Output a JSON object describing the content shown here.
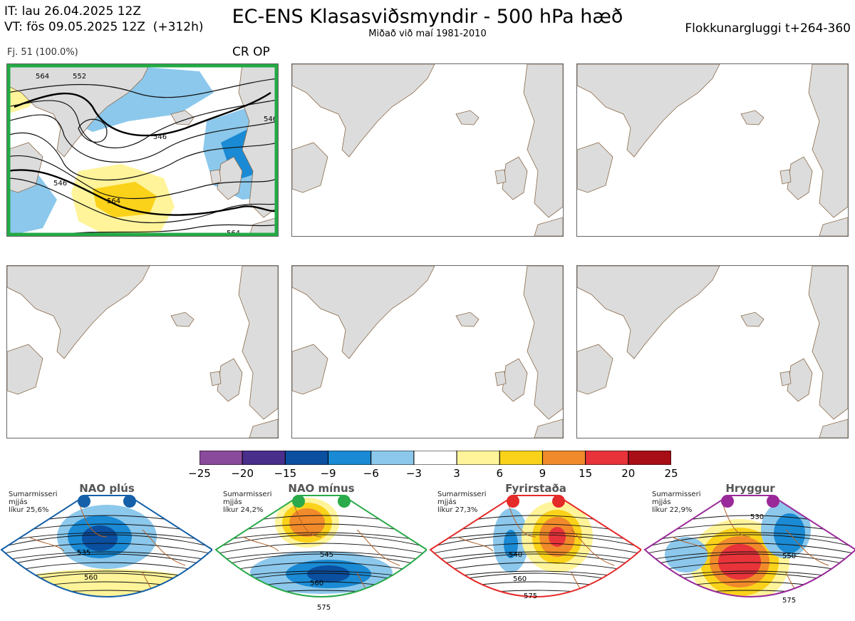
{
  "header": {
    "it_line": "IT: lau 26.04.2025 12Z",
    "vt_line": "VT: fös 09.05.2025 12Z  (+312h)",
    "title": "EC-ENS Klasasviðsmyndir - 500 hPa hæð",
    "subtitle": "Miðað við maí 1981-2010",
    "window": "Flokkunargluggi t+264-360"
  },
  "cluster": {
    "members_label": "Fj. 51 (100.0%)",
    "regime_tag": "CR OP",
    "frame_color": "#22aa44"
  },
  "chart_data": {
    "type": "heatmap",
    "title": "EC-ENS Klasasviðsmyndir - 500 hPa hæð",
    "colorbar": {
      "ticks": [
        "−25",
        "−20",
        "−15",
        "−9",
        "−6",
        "−3",
        "3",
        "6",
        "9",
        "15",
        "20",
        "25"
      ],
      "colors": [
        "#8a4a9c",
        "#4a2e8c",
        "#0a4fa0",
        "#1a8ad4",
        "#8cc8ec",
        "#ffffff",
        "#fff49a",
        "#fbd21a",
        "#f18a2a",
        "#e8333a",
        "#a80e16"
      ]
    },
    "main_panel": {
      "contour_labels": [
        "546",
        "546",
        "546",
        "564",
        "564",
        "552",
        "564"
      ]
    },
    "regimes": [
      {
        "name": "NAO plús",
        "season": "Sumarmisseri",
        "mean": "mjjás",
        "prob": "líkur 25,6%",
        "color": "#1560a8",
        "labels": [
          "535",
          "560"
        ]
      },
      {
        "name": "NAO mínus",
        "season": "Sumarmisseri",
        "mean": "mjjás",
        "prob": "líkur 24,2%",
        "color": "#2aaa4a",
        "labels": [
          "545",
          "560",
          "575"
        ]
      },
      {
        "name": "Fyrirstaða",
        "season": "Sumarmisseri",
        "mean": "mjjás",
        "prob": "líkur 27,3%",
        "color": "#e52a2a",
        "labels": [
          "540",
          "560",
          "575"
        ]
      },
      {
        "name": "Hryggur",
        "season": "Sumarmisseri",
        "mean": "mjjás",
        "prob": "líkur 22,9%",
        "color": "#9a2a9a",
        "labels": [
          "530",
          "550",
          "575"
        ]
      }
    ]
  }
}
